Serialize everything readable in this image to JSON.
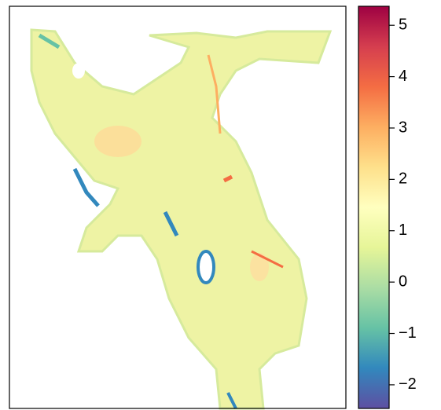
{
  "chart_data": {
    "type": "raster",
    "colorbar": {
      "zlim": [
        -2.46,
        5.37
      ],
      "zticks": [
        {
          "value": -2,
          "label": "−2"
        },
        {
          "value": -1,
          "label": "−1"
        },
        0,
        1,
        2,
        3,
        4,
        5
      ],
      "colors": [
        "#5E4FA2",
        "#3288BD",
        "#66C2A5",
        "#ABDDA4",
        "#E6F598",
        "#FFFFBF",
        "#FEE08B",
        "#FDAE61",
        "#F46D43",
        "#D53E4F",
        "#9E0142"
      ]
    }
  }
}
